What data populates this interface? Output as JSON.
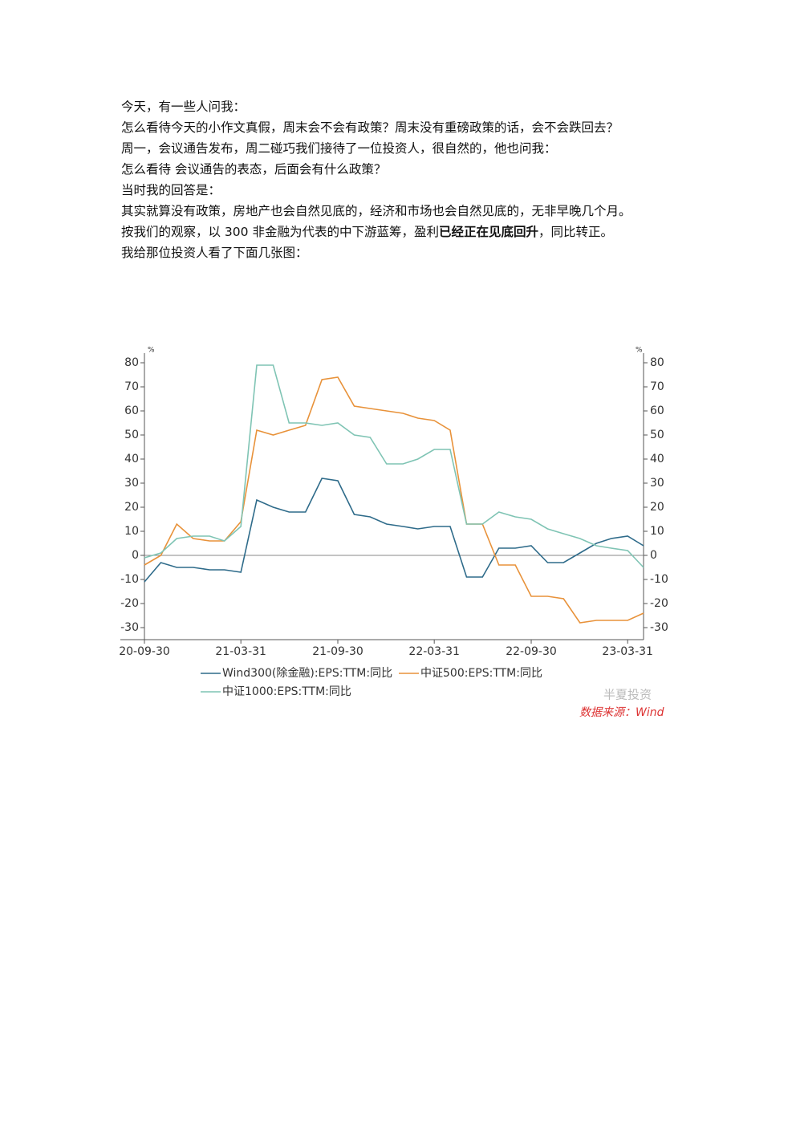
{
  "paragraphs": [
    "今天，有一些人问我：",
    "怎么看待今天的小作文真假，周末会不会有政策？周末没有重磅政策的话，会不会跌回去？",
    "周一，会议通告发布，周二碰巧我们接待了一位投资人，很自然的，他也问我：",
    "怎么看待  会议通告的表态，后面会有什么政策？",
    "当时我的回答是：",
    "其实就算没有政策，房地产也会自然见底的，经济和市场也会自然见底的，无非早晚几个月。"
  ],
  "highlight_paragraph": {
    "before": "按我们的观察，以 300 非金融为代表的中下游蓝筹，盈利",
    "bold": "已经正在见底回升",
    "after": "，同比转正。"
  },
  "closing": "我给那位投资人看了下面几张图：",
  "chart_data": {
    "type": "line",
    "y_unit": "%",
    "watermark": "半夏投资",
    "source": "数据来源：Wind",
    "x": [
      "20-09-30",
      "20-10-31",
      "20-11-30",
      "20-12-31",
      "21-01-31",
      "21-02-28",
      "21-03-31",
      "21-04-30",
      "21-05-31",
      "21-06-30",
      "21-07-31",
      "21-08-31",
      "21-09-30",
      "21-10-31",
      "21-11-30",
      "21-12-31",
      "22-01-31",
      "22-02-28",
      "22-03-31",
      "22-04-30",
      "22-05-31",
      "22-06-30",
      "22-07-31",
      "22-08-31",
      "22-09-30",
      "22-10-31",
      "22-11-30",
      "22-12-31",
      "23-01-31",
      "23-02-28",
      "23-03-31",
      "23-04-30"
    ],
    "xlim": [
      "20-09-30",
      "23-04-30"
    ],
    "xticks": [
      "20-09-30",
      "21-03-31",
      "21-09-30",
      "22-03-31",
      "22-09-30",
      "23-03-31"
    ],
    "ylim": [
      -35,
      84
    ],
    "yticks": [
      -30,
      -20,
      -10,
      0,
      10,
      20,
      30,
      40,
      50,
      60,
      70,
      80
    ],
    "series": [
      {
        "name": "Wind300(除金融):EPS:TTM:同比",
        "color": "#2e6b8a",
        "values": [
          -11,
          -3,
          -5,
          -5,
          -6,
          -6,
          -7,
          23,
          20,
          18,
          18,
          32,
          31,
          17,
          16,
          13,
          12,
          11,
          12,
          12,
          -9,
          -9,
          3,
          3,
          4,
          -3,
          -3,
          1,
          5,
          7,
          8,
          4
        ]
      },
      {
        "name": "中证500:EPS:TTM:同比",
        "color": "#e8923a",
        "values": [
          -4,
          0,
          13,
          7,
          6,
          6,
          14,
          52,
          50,
          52,
          54,
          73,
          74,
          62,
          61,
          60,
          59,
          57,
          56,
          52,
          13,
          13,
          -4,
          -4,
          -17,
          -17,
          -18,
          -28,
          -27,
          -27,
          -27,
          -24
        ]
      },
      {
        "name": "中证1000:EPS:TTM:同比",
        "color": "#7fc4b4",
        "values": [
          -1,
          1,
          7,
          8,
          8,
          6,
          12,
          79,
          79,
          55,
          55,
          54,
          55,
          50,
          49,
          38,
          38,
          40,
          44,
          44,
          13,
          13,
          18,
          16,
          15,
          11,
          9,
          7,
          4,
          3,
          2,
          -5
        ]
      }
    ]
  }
}
